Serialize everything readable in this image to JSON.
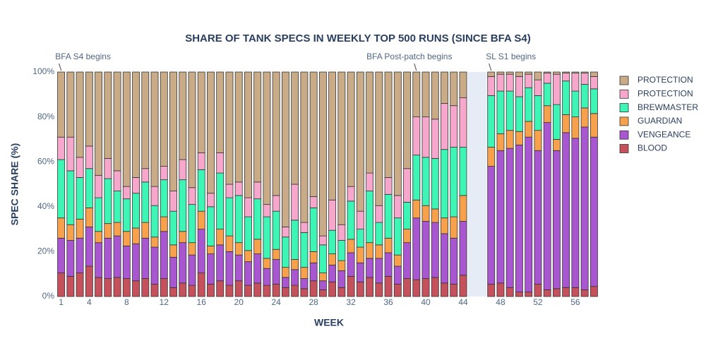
{
  "chart_data": {
    "type": "stacked_bar",
    "title": "SHARE OF TANK SPECS IN WEEKLY TOP 500 RUNS (SINCE BFA S4)",
    "x_label": "WEEK",
    "y_label": "SPEC SHARE (%)",
    "x": [
      1,
      2,
      3,
      4,
      5,
      6,
      7,
      8,
      9,
      10,
      11,
      12,
      13,
      14,
      15,
      16,
      17,
      18,
      19,
      20,
      21,
      22,
      23,
      24,
      25,
      26,
      27,
      28,
      29,
      30,
      31,
      32,
      33,
      34,
      35,
      36,
      37,
      38,
      39,
      40,
      41,
      42,
      43,
      44,
      47,
      48,
      49,
      50,
      51,
      52,
      53,
      54,
      55,
      56,
      57,
      58
    ],
    "xlim": [
      0.5,
      58.5
    ],
    "xticks": [
      1,
      4,
      8,
      12,
      16,
      20,
      24,
      28,
      32,
      36,
      40,
      44,
      48,
      52,
      56
    ],
    "ylim": [
      0,
      100
    ],
    "yticks": [
      {
        "value": 0,
        "label": "0%"
      },
      {
        "value": 20,
        "label": "20%"
      },
      {
        "value": 40,
        "label": "40%"
      },
      {
        "value": 60,
        "label": "60%"
      },
      {
        "value": 80,
        "label": "80%"
      },
      {
        "value": 100,
        "label": "100%"
      }
    ],
    "shaded_region": [
      44.5,
      46.5
    ],
    "annotations": [
      {
        "text": "BFA S4 begins",
        "x": 1
      },
      {
        "text": "BFA Post-patch begins",
        "x": 39
      },
      {
        "text": "SL S1 begins",
        "x": 47
      }
    ],
    "series": [
      {
        "name": "BLOOD",
        "color": "#c4515b",
        "values": [
          10.5,
          9,
          10.5,
          13.5,
          8.5,
          8,
          8.5,
          8,
          7,
          8,
          5.5,
          8,
          4,
          6,
          5,
          10.5,
          5.5,
          7,
          5,
          7,
          5,
          6,
          5,
          5.5,
          4,
          5,
          3.5,
          7,
          3,
          6.5,
          4,
          9,
          6.5,
          8.5,
          6,
          9,
          5.5,
          8,
          7.5,
          8,
          8.5,
          6,
          5.5,
          9.5,
          5.5,
          6,
          4,
          2,
          2,
          5.5,
          3,
          3.5,
          4,
          4,
          3,
          4.5
        ]
      },
      {
        "name": "VENGEANCE",
        "color": "#a957d1",
        "values": [
          15.5,
          16,
          15.5,
          17.5,
          15.5,
          18,
          18.5,
          14.5,
          16.5,
          18,
          16.5,
          21,
          13.5,
          18,
          13.5,
          19.5,
          13.5,
          16,
          15,
          11.5,
          10.5,
          13,
          7.5,
          11,
          4.5,
          7,
          4.5,
          8,
          4,
          7.5,
          7.5,
          10.5,
          8.5,
          8.5,
          11,
          10.5,
          8,
          16,
          27.5,
          25.5,
          24.5,
          22,
          20.5,
          24,
          52.5,
          59,
          62,
          65.5,
          69,
          59.5,
          74.5,
          61.5,
          69,
          66.5,
          72.5,
          66.5
        ]
      },
      {
        "name": "GUARDIAN",
        "color": "#f7a14d",
        "values": [
          9,
          7,
          8.5,
          8.5,
          5,
          6.5,
          6,
          6.5,
          7,
          7,
          4.5,
          6.5,
          5.5,
          5,
          5.5,
          8,
          3.5,
          7,
          7,
          5.5,
          5,
          6.5,
          4.5,
          4.5,
          4.5,
          4.5,
          5,
          5,
          3.5,
          5,
          4.5,
          6,
          7,
          7,
          6,
          6.5,
          5,
          6,
          8,
          7,
          6,
          7,
          9.5,
          11.5,
          8.5,
          7.5,
          8,
          6,
          7,
          9,
          7.5,
          5,
          8,
          9.5,
          8.5,
          10.5
        ]
      },
      {
        "name": "BREWMASTER",
        "color": "#3df5b5",
        "values": [
          26,
          24,
          18.5,
          17.5,
          15,
          20,
          14,
          14.5,
          15.5,
          18,
          14,
          16.5,
          15,
          23,
          17,
          18.5,
          17.5,
          25,
          17,
          21,
          15,
          18,
          18.5,
          17,
          13.5,
          17.5,
          15.5,
          19.5,
          12.5,
          10.5,
          9,
          17,
          8,
          23,
          10,
          19.5,
          16.5,
          12,
          20,
          21.5,
          22.5,
          30.5,
          31,
          21.5,
          23,
          19,
          17.5,
          15.5,
          15,
          15.5,
          10,
          15.5,
          15,
          11.5,
          10.5,
          11
        ]
      },
      {
        "name": "PROTECTION",
        "color": "#f6a7cb",
        "values": [
          10,
          15,
          9,
          10,
          10,
          9,
          9,
          5.5,
          7,
          6,
          8.5,
          6,
          9,
          9,
          7.5,
          7.5,
          6,
          9,
          6,
          6,
          8.5,
          7.5,
          5.5,
          7,
          4.5,
          16,
          4.5,
          5,
          4,
          13.5,
          7,
          6.5,
          8,
          8,
          7.5,
          7.5,
          10,
          15,
          17,
          18,
          17.5,
          20.5,
          18.5,
          22,
          8.5,
          7.5,
          7.5,
          9,
          6,
          7,
          4.5,
          13.5,
          3.5,
          8,
          5,
          5.5
        ]
      },
      {
        "name": "PROTECTION",
        "color": "#c9ab87",
        "values": [
          29,
          29,
          38,
          33,
          46,
          38.5,
          44,
          51,
          47,
          43,
          51,
          42,
          53,
          39,
          51.5,
          36,
          54,
          36,
          50,
          49,
          56,
          49,
          59,
          55,
          69,
          50,
          67,
          55.5,
          73,
          57,
          68,
          51,
          62,
          45,
          59.5,
          47,
          55,
          43,
          20,
          20,
          21,
          14,
          15,
          11.5,
          2,
          1,
          1,
          2,
          1,
          3.5,
          0.5,
          1,
          0.5,
          0.5,
          0.5,
          2
        ]
      }
    ]
  }
}
